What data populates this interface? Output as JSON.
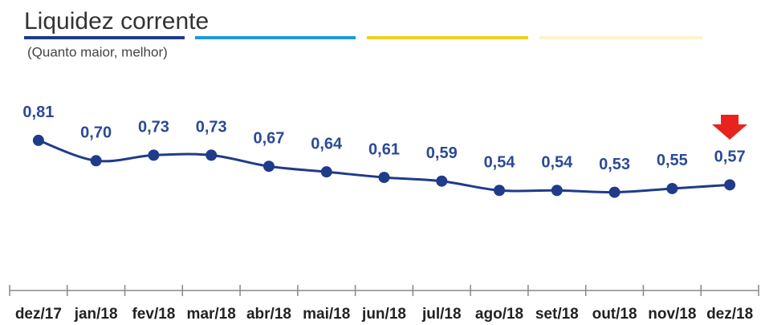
{
  "chart_data": {
    "type": "line",
    "title": "Liquidez corrente",
    "subtitle": "(Quanto maior, melhor)",
    "categories": [
      "dez/17",
      "jan/18",
      "fev/18",
      "mar/18",
      "abr/18",
      "mai/18",
      "jun/18",
      "jul/18",
      "ago/18",
      "set/18",
      "out/18",
      "nov/18",
      "dez/18"
    ],
    "values": [
      0.81,
      0.7,
      0.73,
      0.73,
      0.67,
      0.64,
      0.61,
      0.59,
      0.54,
      0.54,
      0.53,
      0.55,
      0.57
    ],
    "value_labels": [
      "0,81",
      "0,70",
      "0,73",
      "0,73",
      "0,67",
      "0,64",
      "0,61",
      "0,59",
      "0,54",
      "0,54",
      "0,53",
      "0,55",
      "0,57"
    ],
    "color": "#1f3b8a"
  }
}
